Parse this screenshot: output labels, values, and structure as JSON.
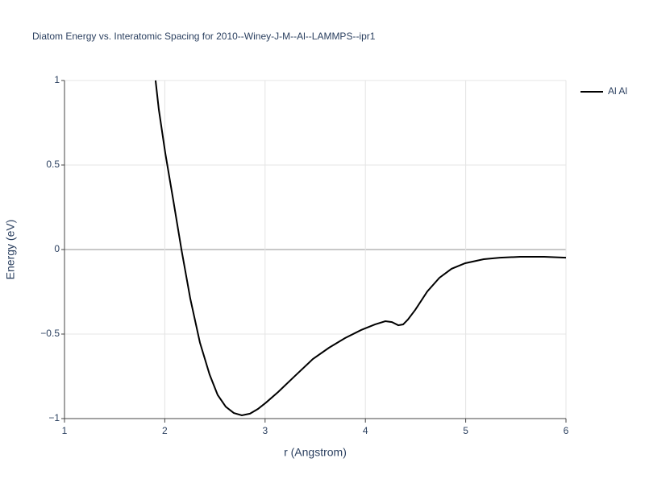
{
  "chart_data": {
    "type": "line",
    "title": "Diatom Energy vs. Interatomic Spacing for 2010--Winey-J-M--Al--LAMMPS--ipr1",
    "x_label": "r (Angstrom)",
    "y_label": "Energy (eV)",
    "x": [
      1.908,
      1.94,
      2.005,
      2.085,
      2.166,
      2.254,
      2.35,
      2.447,
      2.527,
      2.608,
      2.688,
      2.768,
      2.849,
      2.929,
      3.01,
      3.13,
      3.29,
      3.476,
      3.637,
      3.797,
      3.958,
      4.095,
      4.199,
      4.264,
      4.328,
      4.376,
      4.424,
      4.497,
      4.617,
      4.738,
      4.859,
      4.995,
      5.18,
      5.341,
      5.542,
      5.783,
      6.0
    ],
    "series": [
      {
        "name": "Al Al",
        "color": "#000000",
        "values": [
          1.0,
          0.83,
          0.57,
          0.29,
          0.0,
          -0.29,
          -0.55,
          -0.74,
          -0.86,
          -0.93,
          -0.967,
          -0.981,
          -0.971,
          -0.943,
          -0.905,
          -0.843,
          -0.752,
          -0.648,
          -0.581,
          -0.524,
          -0.476,
          -0.443,
          -0.424,
          -0.429,
          -0.448,
          -0.443,
          -0.414,
          -0.357,
          -0.248,
          -0.167,
          -0.114,
          -0.081,
          -0.057,
          -0.048,
          -0.043,
          -0.043,
          -0.048
        ]
      }
    ],
    "xlim": [
      1,
      6
    ],
    "xticks": [
      1,
      2,
      3,
      4,
      5,
      6
    ],
    "ylim": [
      -1,
      1
    ],
    "yticks": [
      {
        "value": -1,
        "label": "−1"
      },
      {
        "value": -0.5,
        "label": "−0.5"
      },
      0,
      0.5,
      1
    ],
    "grid": true,
    "legend": "outside-right"
  }
}
